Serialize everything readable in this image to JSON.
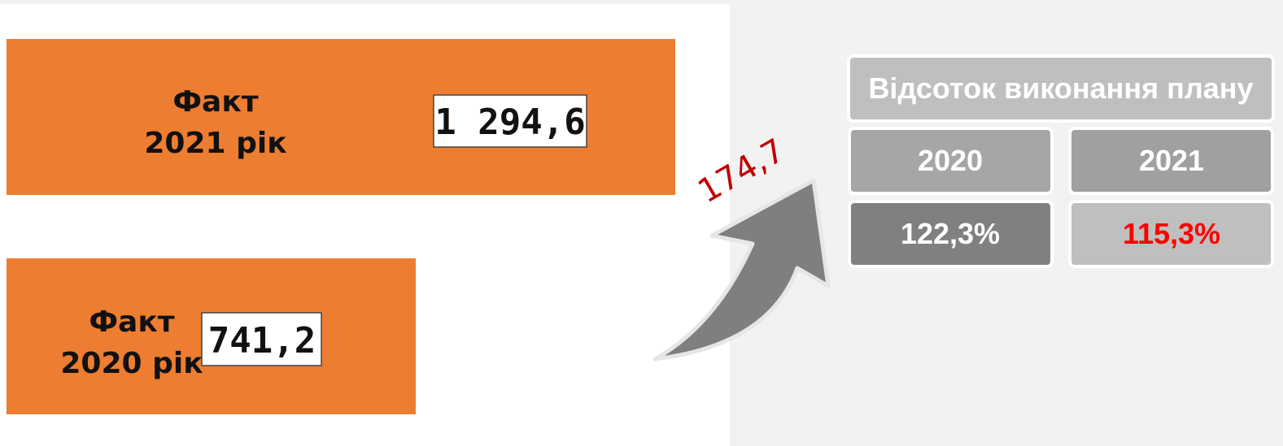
{
  "bars": [
    {
      "line1": "Факт",
      "line2": "2021 рік",
      "value": "1 294,6"
    },
    {
      "line1": "Факт",
      "line2": "2020 рік",
      "value": "741,2"
    }
  ],
  "growth": "174,7",
  "table": {
    "title": "Відсоток виконання плану",
    "headers": [
      "2020",
      "2021"
    ],
    "values": [
      "122,3%",
      "115,3%"
    ]
  }
}
